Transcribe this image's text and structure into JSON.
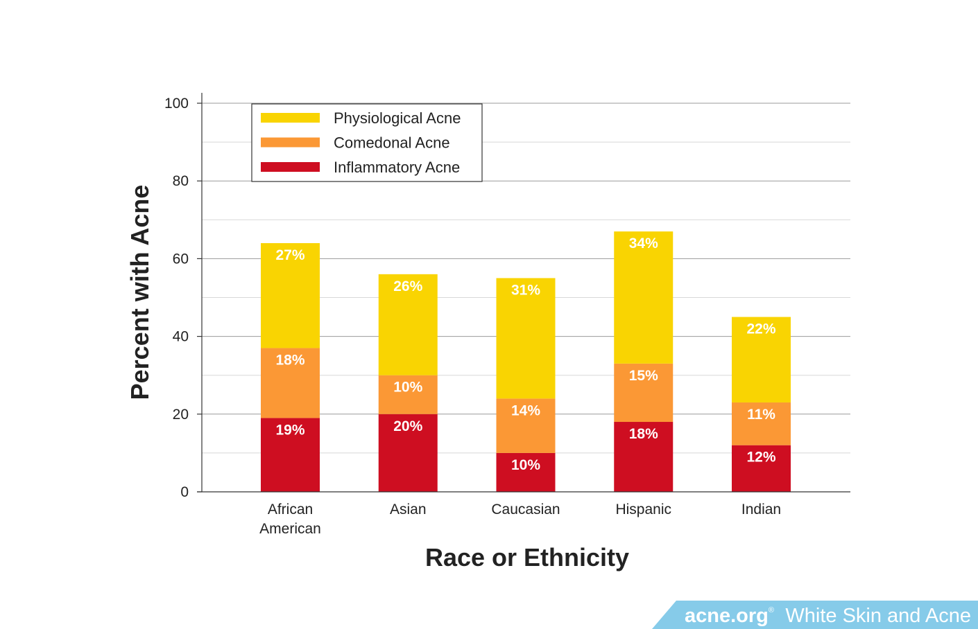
{
  "chart_data": {
    "type": "bar",
    "stacked": true,
    "categories": [
      [
        "African",
        "American"
      ],
      [
        "Asian"
      ],
      [
        "Caucasian"
      ],
      [
        "Hispanic"
      ],
      [
        "Indian"
      ]
    ],
    "series": [
      {
        "name": "Inflammatory Acne",
        "color": "#CE0E21",
        "values": [
          19,
          20,
          10,
          18,
          12
        ],
        "labels": [
          "19%",
          "20%",
          "10%",
          "18%",
          "12%"
        ]
      },
      {
        "name": "Comedonal Acne",
        "color": "#FB9835",
        "values": [
          18,
          10,
          14,
          15,
          11
        ],
        "labels": [
          "18%",
          "10%",
          "14%",
          "15%",
          "11%"
        ]
      },
      {
        "name": "Physiological Acne",
        "color": "#F9D402",
        "values": [
          27,
          26,
          31,
          34,
          22
        ],
        "labels": [
          "27%",
          "26%",
          "31%",
          "34%",
          "22%"
        ]
      }
    ],
    "legend_order": [
      "Physiological Acne",
      "Comedonal Acne",
      "Inflammatory Acne"
    ],
    "legend_position": "top-left",
    "xlabel": "Race or Ethnicity",
    "ylabel": "Percent with Acne",
    "ylim": [
      0,
      100
    ],
    "yticks": [
      0,
      20,
      40,
      60,
      80,
      100
    ],
    "grid": true
  },
  "banner": {
    "brand": "acne.org",
    "registered": "®",
    "text": "White Skin and Acne",
    "color": "#86CBE9"
  }
}
